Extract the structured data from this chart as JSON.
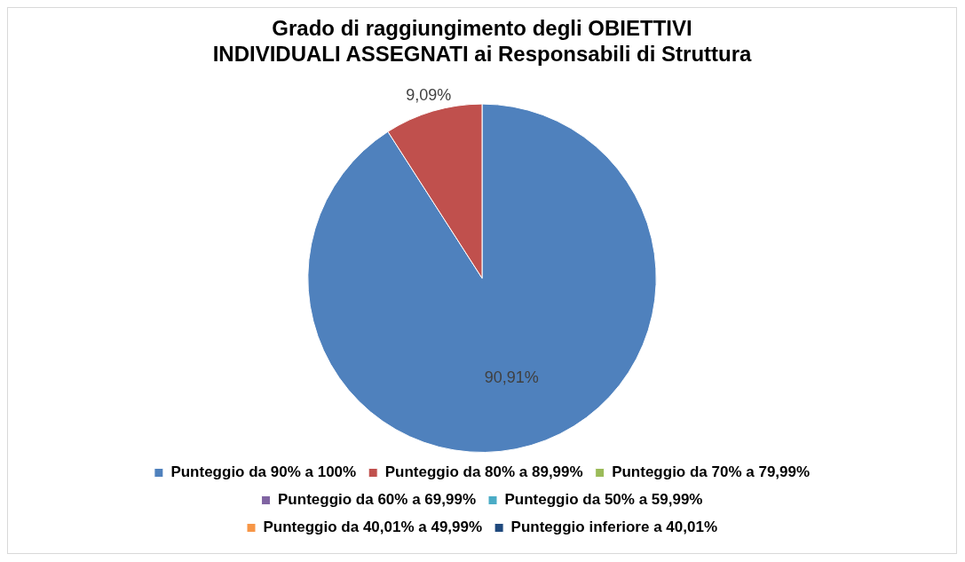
{
  "chart_data": {
    "type": "pie",
    "title": "Grado di raggiungimento degli OBIETTIVI INDIVIDUALI ASSEGNATI ai Responsabili di Struttura",
    "categories": [
      "Punteggio da 90% a 100%",
      "Punteggio da 80% a 89,99%",
      "Punteggio da 70% a 79,99%",
      "Punteggio da 60% a 69,99%",
      "Punteggio da 50% a 59,99%",
      "Punteggio da 40,01% a 49,99%",
      "Punteggio inferiore a 40,01%"
    ],
    "values": [
      90.91,
      9.09,
      0,
      0,
      0,
      0,
      0
    ],
    "value_labels": [
      "90,91%",
      "9,09%",
      null,
      null,
      null,
      null,
      null
    ],
    "colors": [
      "#4f81bd",
      "#c0504d",
      "#9bbb59",
      "#8064a2",
      "#4bacc6",
      "#f79646",
      "#1f497d"
    ],
    "legend": "bottom"
  }
}
